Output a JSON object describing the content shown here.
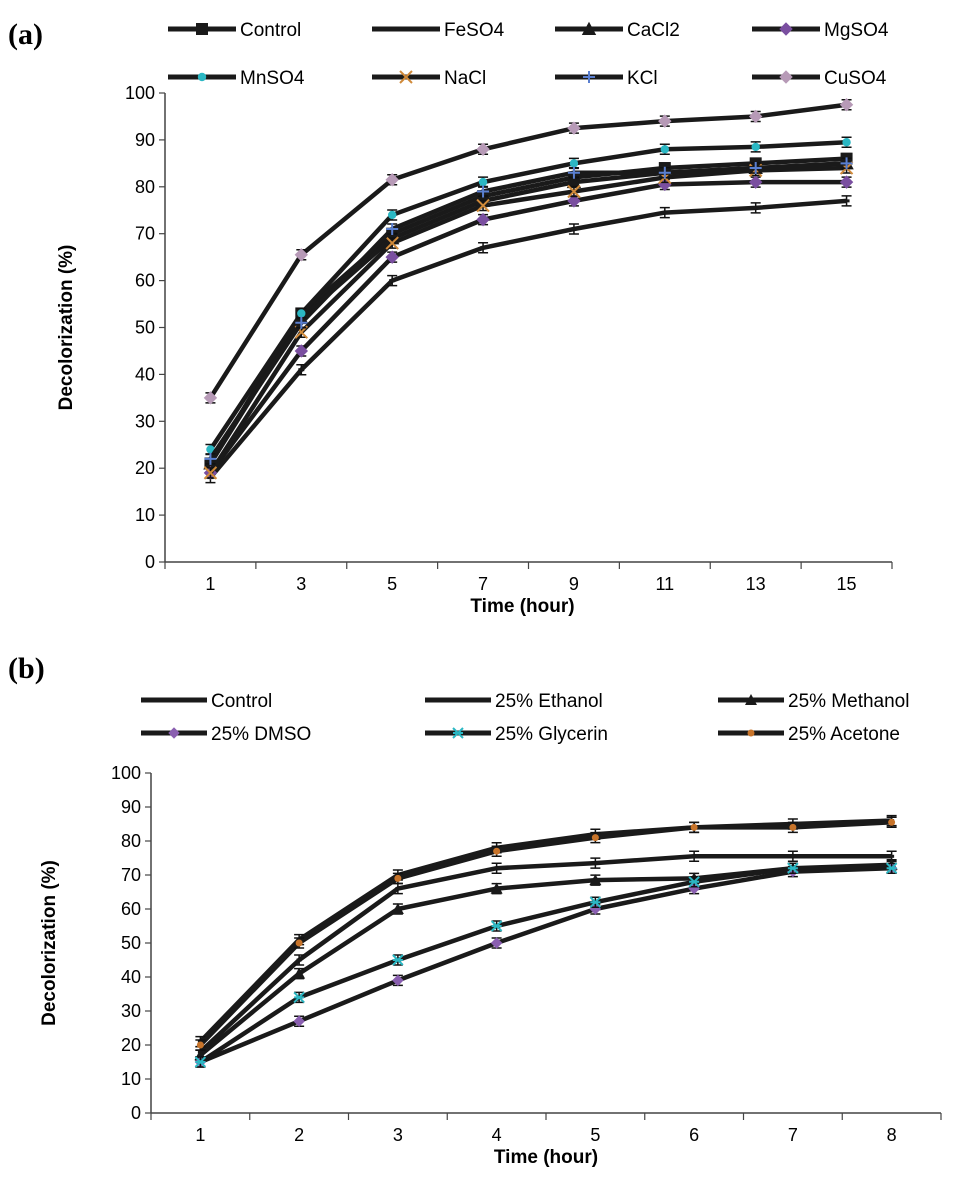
{
  "colors": {
    "line": "#1a1a1a",
    "CuSO4": "#b79ab7",
    "MnSO4": "#2bb7c3",
    "NaCl": "#d08a3a",
    "KCl": "#5a7fd0",
    "MgSO4": "#7a4fa0",
    "Glycerin": "#2bb7c3",
    "Acetone": "#c8742a",
    "DMSO": "#8a5fb0"
  },
  "chart_data": [
    {
      "panel_label": "a",
      "type": "line",
      "x": [
        1,
        3,
        5,
        7,
        9,
        11,
        13,
        15
      ],
      "xlabel": "Time (hour)",
      "ylabel": "Decolorization (%)",
      "ylim": [
        0,
        100
      ],
      "yticks": [
        0,
        10,
        20,
        30,
        40,
        50,
        60,
        70,
        80,
        90,
        100
      ],
      "error_bars": true,
      "legend": "top",
      "series": [
        {
          "name": "Control",
          "marker": "square",
          "color_key": "line",
          "values": [
            21,
            53,
            70,
            78,
            82,
            84,
            85,
            86
          ]
        },
        {
          "name": "FeSO4",
          "marker": "dash",
          "color_key": "line",
          "values": [
            18,
            41,
            60,
            67,
            71,
            74.5,
            75.5,
            77
          ]
        },
        {
          "name": "CaCl2",
          "marker": "triangle",
          "color_key": "line",
          "values": [
            21,
            52,
            69,
            77,
            81,
            83,
            84,
            85
          ]
        },
        {
          "name": "MgSO4",
          "marker": "diamond",
          "color_key": "MgSO4",
          "values": [
            19,
            45,
            65,
            73,
            77,
            80.5,
            81,
            81
          ]
        },
        {
          "name": "MnSO4",
          "marker": "dot",
          "color_key": "MnSO4",
          "values": [
            24,
            53,
            74,
            81,
            85,
            88,
            88.5,
            89.5
          ]
        },
        {
          "name": "NaCl",
          "marker": "x",
          "color_key": "NaCl",
          "values": [
            19,
            49,
            68,
            76,
            79,
            82,
            83.5,
            84
          ]
        },
        {
          "name": "KCl",
          "marker": "plus",
          "color_key": "KCl",
          "values": [
            22,
            51,
            71,
            79,
            83,
            83,
            84,
            85
          ]
        },
        {
          "name": "CuSO4",
          "marker": "diamond",
          "color_key": "CuSO4",
          "values": [
            35,
            65.5,
            81.5,
            88,
            92.5,
            94,
            95,
            97.5
          ]
        }
      ]
    },
    {
      "panel_label": "b",
      "type": "line",
      "x": [
        1,
        2,
        3,
        4,
        5,
        6,
        7,
        8
      ],
      "xlabel": "Time (hour)",
      "ylabel": "Decolorization (%)",
      "ylim": [
        0,
        100
      ],
      "yticks": [
        0,
        10,
        20,
        30,
        40,
        50,
        60,
        70,
        80,
        90,
        100
      ],
      "error_bars": true,
      "legend": "top",
      "series": [
        {
          "name": "Control",
          "marker": "dash",
          "color_key": "line",
          "values": [
            21,
            51,
            70,
            78,
            82,
            84,
            85,
            86
          ]
        },
        {
          "name": "25% Ethanol",
          "marker": "dash",
          "color_key": "line",
          "values": [
            18,
            45,
            66,
            72,
            73.5,
            75.5,
            75.5,
            75.5
          ]
        },
        {
          "name": "25% Methanol",
          "marker": "triangle",
          "color_key": "line",
          "values": [
            17,
            41,
            60,
            66,
            68.5,
            69,
            72,
            73
          ]
        },
        {
          "name": "25% DMSO",
          "marker": "diamond",
          "color_key": "DMSO",
          "values": [
            15,
            27,
            39,
            50,
            60,
            66,
            71,
            72
          ]
        },
        {
          "name": "25% Glycerin",
          "marker": "asterisk",
          "color_key": "Glycerin",
          "values": [
            15,
            34,
            45,
            55,
            62,
            68,
            72,
            72
          ]
        },
        {
          "name": "25% Acetone",
          "marker": "dot",
          "color_key": "Acetone",
          "values": [
            20,
            50,
            69,
            77,
            81,
            84,
            84,
            85.5
          ]
        }
      ]
    }
  ]
}
